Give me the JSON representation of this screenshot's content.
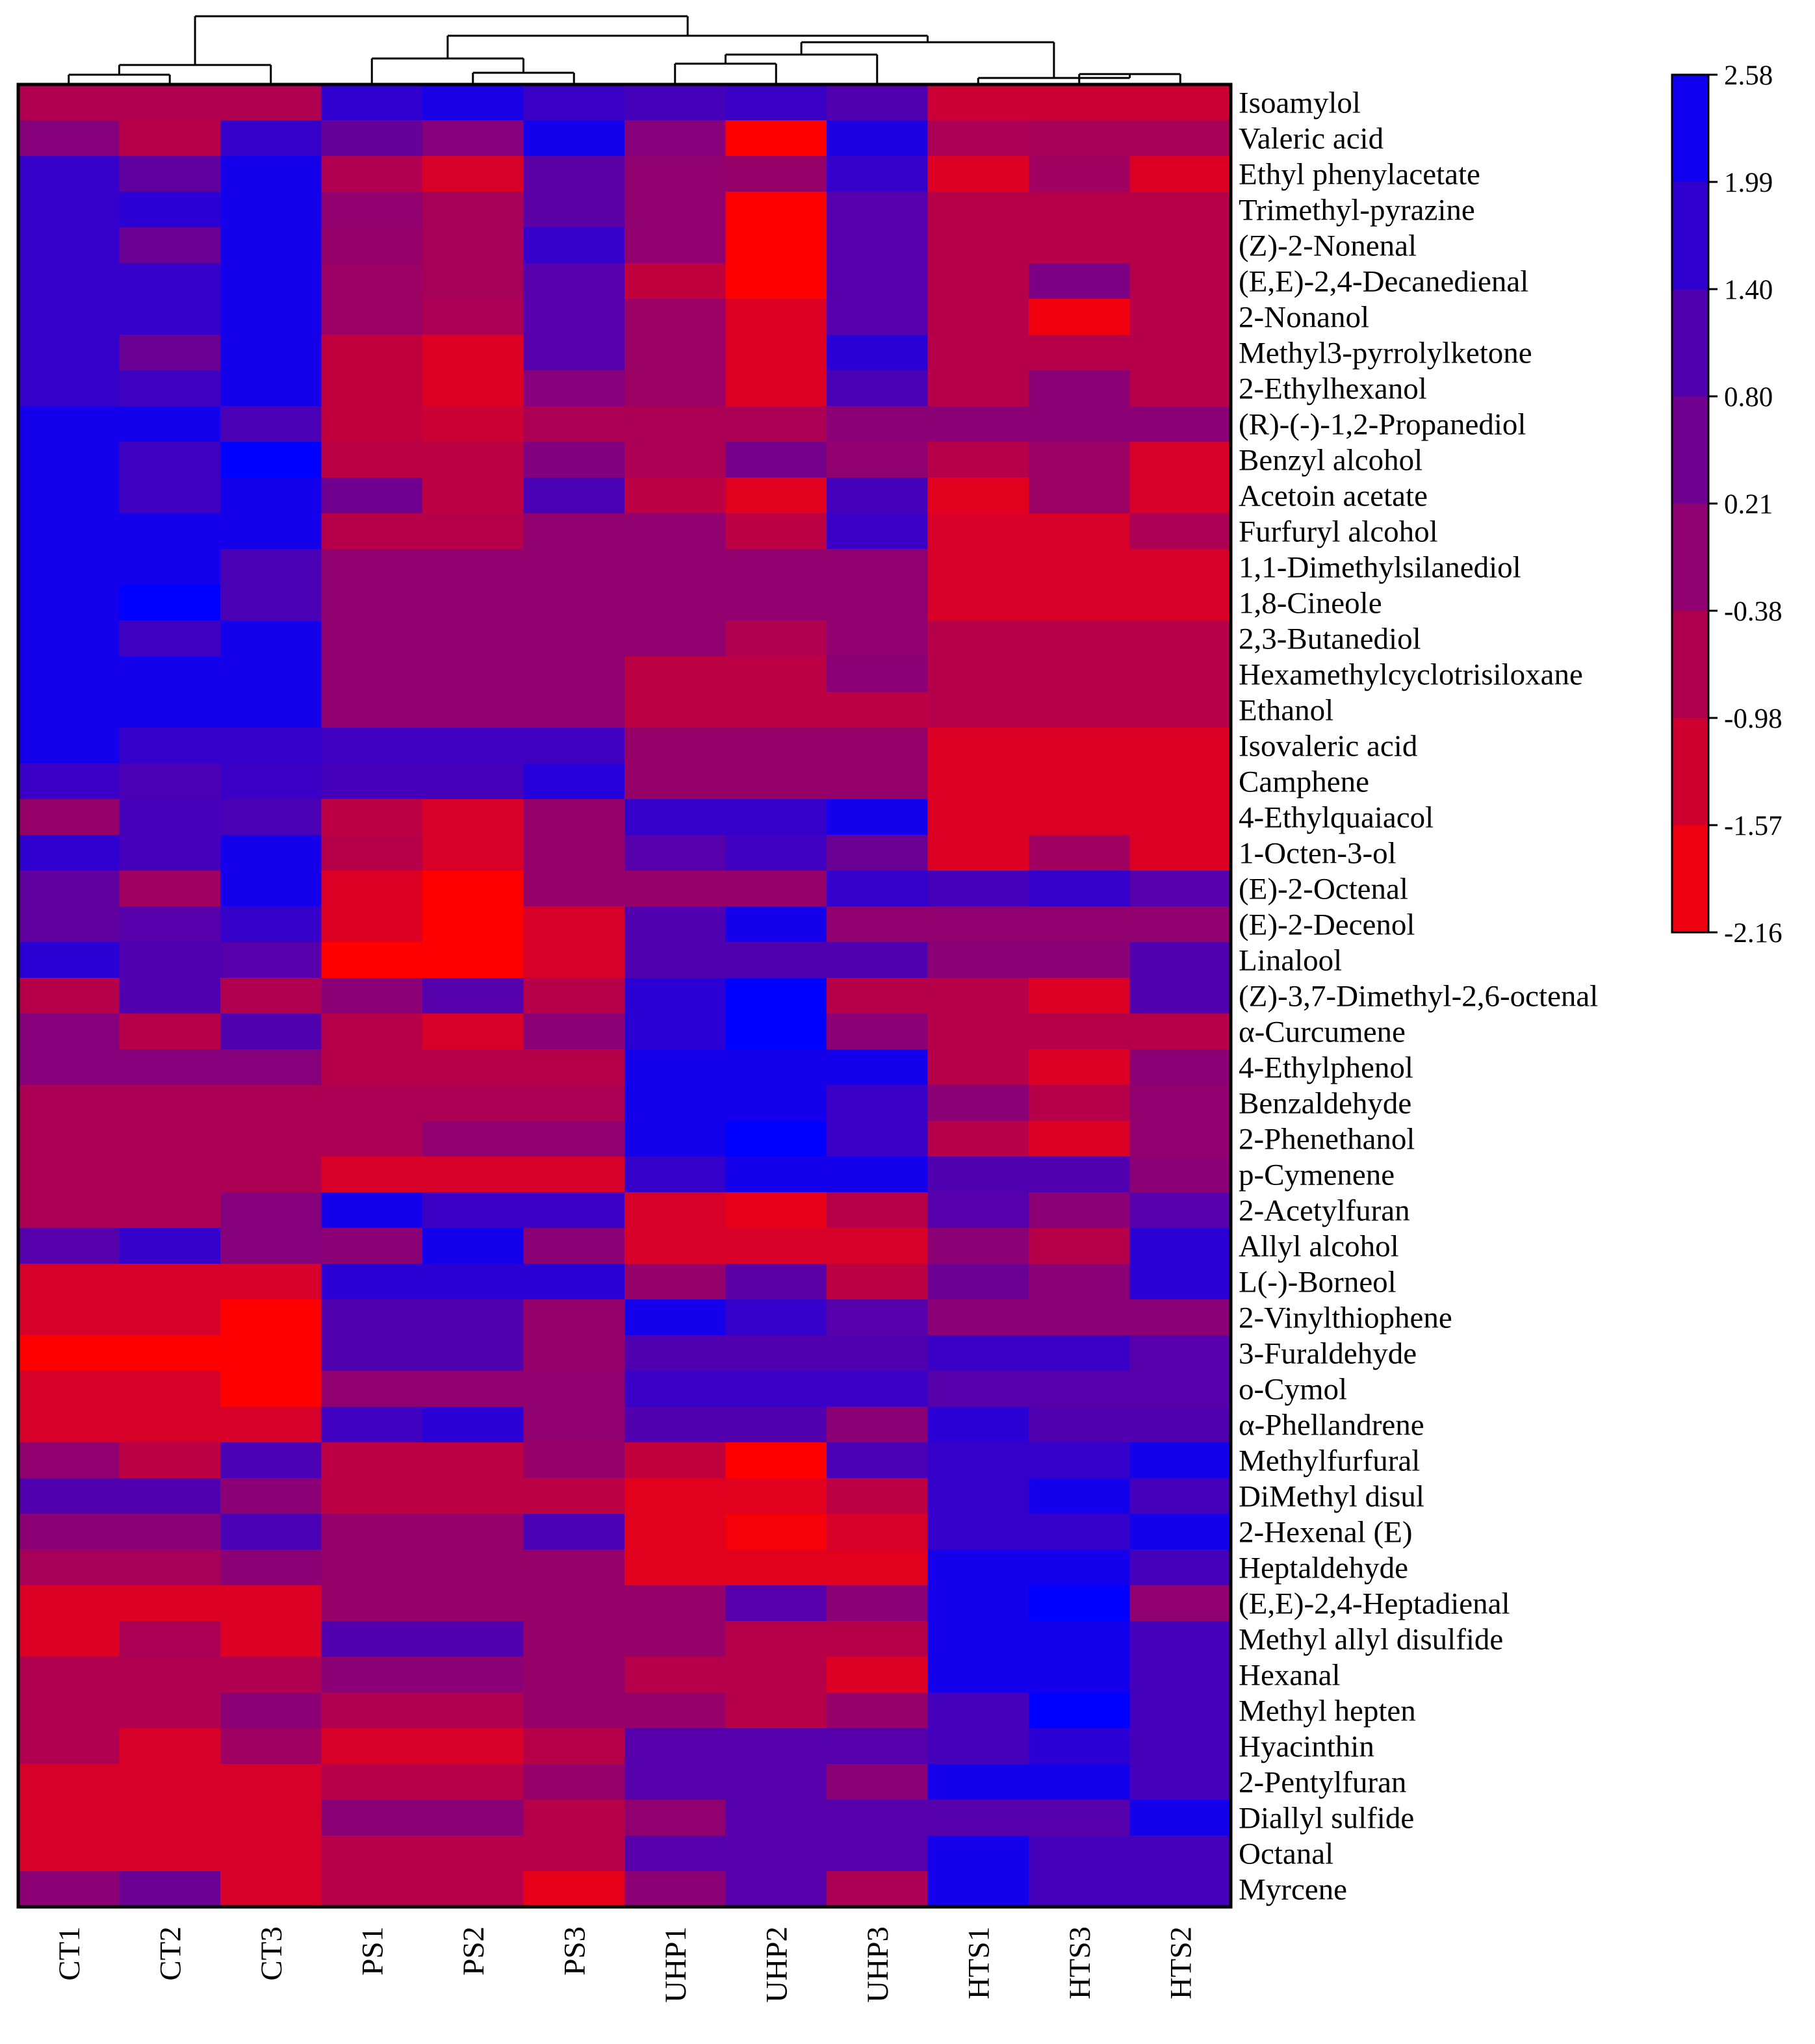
{
  "chart_data": {
    "type": "heatmap",
    "title": "",
    "columns": [
      "CT1",
      "CT2",
      "CT3",
      "PS1",
      "PS2",
      "PS3",
      "UHP1",
      "UHP2",
      "UHP3",
      "HTS1",
      "HTS3",
      "HTS2"
    ],
    "rows": [
      "Isoamylol",
      "Valeric acid",
      "Ethyl phenylacetate",
      "Trimethyl-pyrazine",
      "(Z)-2-Nonenal",
      "(E,E)-2,4-Decanedienal",
      "2-Nonanol",
      "Methyl3-pyrrolylketone",
      "2-Ethylhexanol",
      "(R)-(-)-1,2-Propanediol",
      "Benzyl alcohol",
      "Acetoin acetate",
      "Furfuryl alcohol",
      "1,1-Dimethylsilanediol",
      "1,8-Cineole",
      "2,3-Butanediol",
      "Hexamethylcyclotrisiloxane",
      "Ethanol",
      "Isovaleric acid",
      "Camphene",
      "4-Ethylquaiacol",
      "1-Octen-3-ol",
      "(E)-2-Octenal",
      "(E)-2-Decenol",
      "Linalool",
      "(Z)-3,7-Dimethyl-2,6-octenal",
      "α-Curcumene",
      "4-Ethylphenol",
      "Benzaldehyde",
      "2-Phenethanol",
      "p-Cymenene",
      "2-Acetylfuran",
      "Allyl alcohol",
      "L(-)-Borneol",
      "2-Vinylthiophene",
      "3-Furaldehyde",
      "o-Cymol",
      "α-Phellandrene",
      "Methylfurfural",
      "DiMethyl disul",
      "2-Hexenal (E)",
      "Heptaldehyde",
      "(E,E)-2,4-Heptadienal",
      "Methyl allyl disulfide",
      "Hexanal",
      "Methyl hepten",
      "Hyacinthin",
      "2-Pentylfuran",
      "Diallyl sulfide",
      "Octanal",
      "Myrcene"
    ],
    "values": [
      [
        -0.7,
        -0.7,
        -0.7,
        1.7,
        2.1,
        1.5,
        1.3,
        1.5,
        1.1,
        -1.2,
        -1.2,
        -1.2
      ],
      [
        0.1,
        -0.8,
        1.6,
        0.7,
        0.1,
        2.2,
        0.1,
        -2.16,
        2.0,
        -0.6,
        -0.5,
        -0.5
      ],
      [
        1.6,
        0.8,
        2.2,
        -0.7,
        -1.4,
        0.9,
        -0.1,
        -0.2,
        1.6,
        -1.5,
        -0.4,
        -1.5
      ],
      [
        1.6,
        1.8,
        2.2,
        -0.1,
        -0.5,
        0.9,
        -0.1,
        -2.16,
        1.0,
        -0.8,
        -0.8,
        -0.8
      ],
      [
        1.6,
        0.6,
        2.2,
        -0.2,
        -0.5,
        1.6,
        -0.1,
        -2.16,
        1.0,
        -0.8,
        -0.8,
        -0.8
      ],
      [
        1.6,
        1.6,
        2.2,
        -0.3,
        -0.5,
        1.0,
        -1.0,
        -2.16,
        1.0,
        -0.8,
        0.3,
        -0.8
      ],
      [
        1.6,
        1.6,
        2.2,
        -0.3,
        -0.6,
        1.0,
        -0.3,
        -1.5,
        1.0,
        -0.8,
        -1.9,
        -0.8
      ],
      [
        1.6,
        0.6,
        2.2,
        -1.0,
        -1.5,
        1.0,
        -0.3,
        -1.5,
        1.8,
        -0.8,
        -0.8,
        -0.8
      ],
      [
        1.6,
        1.4,
        2.2,
        -1.0,
        -1.5,
        0.1,
        -0.3,
        -1.5,
        1.2,
        -0.8,
        0.0,
        -0.8
      ],
      [
        2.2,
        2.2,
        1.2,
        -1.0,
        -1.2,
        -0.6,
        -0.6,
        -0.6,
        0.0,
        0.0,
        0.0,
        0.0
      ],
      [
        2.2,
        1.4,
        2.58,
        -0.9,
        -0.9,
        0.2,
        -0.6,
        0.4,
        -0.1,
        -0.8,
        -0.3,
        -1.4
      ],
      [
        2.2,
        1.4,
        2.2,
        0.5,
        -0.9,
        1.2,
        -0.9,
        -1.6,
        1.3,
        -1.6,
        -0.3,
        -1.4
      ],
      [
        2.2,
        2.2,
        2.2,
        -0.8,
        -0.8,
        -0.1,
        -0.1,
        -0.9,
        1.5,
        -1.4,
        -1.4,
        -0.6
      ],
      [
        2.2,
        2.2,
        1.2,
        -0.1,
        -0.1,
        -0.1,
        -0.1,
        -0.1,
        -0.1,
        -1.4,
        -1.4,
        -1.4
      ],
      [
        2.2,
        2.58,
        1.2,
        -0.1,
        -0.1,
        -0.1,
        -0.1,
        -0.1,
        -0.1,
        -1.4,
        -1.4,
        -1.4
      ],
      [
        2.2,
        1.4,
        2.2,
        -0.1,
        -0.1,
        -0.1,
        -0.1,
        -0.7,
        -0.1,
        -0.8,
        -0.8,
        -0.8
      ],
      [
        2.2,
        2.2,
        2.2,
        -0.1,
        -0.1,
        -0.1,
        -0.9,
        -0.9,
        0.0,
        -0.8,
        -0.8,
        -0.8
      ],
      [
        2.2,
        2.2,
        2.2,
        -0.1,
        -0.1,
        -0.1,
        -0.9,
        -0.9,
        -0.9,
        -0.8,
        -0.8,
        -0.8
      ],
      [
        2.2,
        1.6,
        1.6,
        1.4,
        1.4,
        1.4,
        -0.2,
        -0.2,
        -0.2,
        -1.5,
        -1.5,
        -1.5
      ],
      [
        1.5,
        1.2,
        1.5,
        1.3,
        1.3,
        1.9,
        -0.2,
        -0.2,
        -0.2,
        -1.5,
        -1.5,
        -1.5
      ],
      [
        -0.2,
        1.3,
        1.2,
        -0.9,
        -1.4,
        -0.2,
        1.6,
        1.6,
        2.2,
        -1.5,
        -1.5,
        -1.5
      ],
      [
        1.7,
        1.3,
        2.2,
        -0.8,
        -1.4,
        -0.2,
        1.0,
        1.4,
        0.6,
        -1.5,
        -0.4,
        -1.5
      ],
      [
        0.8,
        -0.4,
        2.2,
        -1.5,
        -2.16,
        -0.2,
        -0.2,
        -0.2,
        1.6,
        1.3,
        1.6,
        1.0
      ],
      [
        0.8,
        1.0,
        1.6,
        -1.5,
        -2.16,
        -1.4,
        1.1,
        2.2,
        -0.1,
        -0.1,
        -0.1,
        -0.1
      ],
      [
        1.8,
        1.1,
        1.0,
        -2.16,
        -2.16,
        -1.4,
        1.1,
        1.1,
        1.1,
        0.0,
        0.0,
        1.1
      ],
      [
        -0.8,
        1.1,
        -0.7,
        0.0,
        1.0,
        -0.8,
        1.8,
        2.58,
        -0.8,
        -0.8,
        -1.5,
        1.1
      ],
      [
        0.1,
        -0.8,
        1.1,
        -0.8,
        -1.4,
        0.0,
        1.8,
        2.58,
        0.0,
        -0.8,
        -0.8,
        -0.8
      ],
      [
        0.1,
        0.1,
        0.1,
        -0.8,
        -0.8,
        -0.8,
        2.2,
        2.2,
        2.2,
        -0.8,
        -1.5,
        0.0
      ],
      [
        -0.6,
        -0.6,
        -0.6,
        -0.6,
        -0.6,
        -0.6,
        2.2,
        2.2,
        1.5,
        0.0,
        -0.8,
        -0.1
      ],
      [
        -0.6,
        -0.6,
        -0.6,
        -0.6,
        -0.1,
        -0.1,
        2.2,
        2.58,
        1.5,
        -0.8,
        -1.5,
        -0.1
      ],
      [
        -0.6,
        -0.6,
        -0.6,
        -1.4,
        -1.4,
        -1.4,
        1.6,
        2.2,
        2.2,
        1.1,
        1.1,
        0.0
      ],
      [
        -0.6,
        -0.6,
        0.1,
        2.2,
        1.5,
        1.5,
        -1.4,
        -1.7,
        -0.8,
        1.0,
        0.0,
        1.0
      ],
      [
        1.0,
        1.6,
        0.1,
        0.0,
        2.2,
        0.0,
        -1.4,
        -1.4,
        -1.4,
        0.0,
        -0.8,
        1.8
      ],
      [
        -1.4,
        -1.4,
        -1.4,
        1.8,
        1.8,
        1.8,
        -0.2,
        0.9,
        -0.9,
        0.6,
        0.0,
        1.8
      ],
      [
        -1.4,
        -1.4,
        -2.16,
        1.1,
        1.1,
        -0.2,
        2.2,
        1.6,
        1.0,
        0.0,
        0.0,
        0.0
      ],
      [
        -2.16,
        -2.16,
        -2.16,
        1.1,
        1.1,
        -0.2,
        1.1,
        1.1,
        1.1,
        1.5,
        1.5,
        1.0
      ],
      [
        -1.4,
        -1.4,
        -2.16,
        -0.1,
        -0.1,
        -0.1,
        1.5,
        1.5,
        1.5,
        1.0,
        1.0,
        1.0
      ],
      [
        -1.4,
        -1.4,
        -1.4,
        1.4,
        1.8,
        -0.1,
        1.1,
        1.1,
        0.0,
        1.8,
        1.1,
        1.1
      ],
      [
        -0.1,
        -0.9,
        1.2,
        -0.9,
        -0.9,
        -0.2,
        -1.0,
        -2.16,
        1.2,
        1.6,
        1.6,
        2.2
      ],
      [
        1.1,
        1.1,
        0.0,
        -0.9,
        -0.9,
        -0.9,
        -1.6,
        -1.6,
        -0.9,
        1.6,
        2.2,
        1.3
      ],
      [
        0.0,
        0.0,
        1.2,
        -0.2,
        -0.2,
        1.2,
        -1.6,
        -2.0,
        -1.4,
        1.6,
        1.6,
        2.2
      ],
      [
        -0.5,
        -0.5,
        0.0,
        -0.2,
        -0.2,
        -0.2,
        -1.6,
        -1.6,
        -1.6,
        2.2,
        2.2,
        1.3
      ],
      [
        -1.5,
        -1.5,
        -1.5,
        -0.2,
        -0.2,
        -0.2,
        -0.2,
        1.0,
        0.0,
        2.2,
        2.58,
        -0.1
      ],
      [
        -1.5,
        -0.6,
        -1.5,
        1.1,
        1.1,
        -0.2,
        -0.2,
        -0.8,
        -0.8,
        2.2,
        2.2,
        1.3
      ],
      [
        -0.7,
        -0.7,
        -0.7,
        0.0,
        0.0,
        -0.2,
        -0.8,
        -0.8,
        -1.5,
        2.2,
        2.2,
        1.3
      ],
      [
        -0.7,
        -0.7,
        0.0,
        -0.7,
        -0.7,
        -0.2,
        -0.2,
        -0.8,
        -0.2,
        1.3,
        2.58,
        1.3
      ],
      [
        -0.7,
        -1.4,
        -0.4,
        -1.4,
        -1.4,
        -0.8,
        1.0,
        1.0,
        1.0,
        1.3,
        1.8,
        1.3
      ],
      [
        -1.4,
        -1.4,
        -1.4,
        -0.8,
        -0.8,
        -0.2,
        1.0,
        1.0,
        0.0,
        2.2,
        2.2,
        1.3
      ],
      [
        -1.4,
        -1.4,
        -1.4,
        0.0,
        0.0,
        -0.8,
        -0.1,
        1.0,
        1.0,
        1.0,
        1.0,
        2.2
      ],
      [
        -1.4,
        -1.4,
        -1.4,
        -0.8,
        -0.8,
        -0.8,
        1.0,
        1.0,
        1.0,
        2.2,
        1.3,
        1.3
      ],
      [
        0.0,
        0.6,
        -1.4,
        -0.8,
        -0.8,
        -1.7,
        0.0,
        1.0,
        -0.6,
        2.2,
        1.3,
        1.3
      ]
    ],
    "colorbar": {
      "ticks": [
        "2.58",
        "1.99",
        "1.40",
        "0.80",
        "0.21",
        "-0.38",
        "-0.98",
        "-1.57",
        "-2.16"
      ],
      "min": -2.16,
      "max": 2.58,
      "colors": [
        "#ff0000",
        "#0000ff"
      ]
    },
    "dendrogram": "columns clustered: (CT1,CT2,CT3) | ((PS1,PS2,PS3),((UHP1,UHP2,UHP3),(HTS1,HTS3,HTS2)))"
  }
}
